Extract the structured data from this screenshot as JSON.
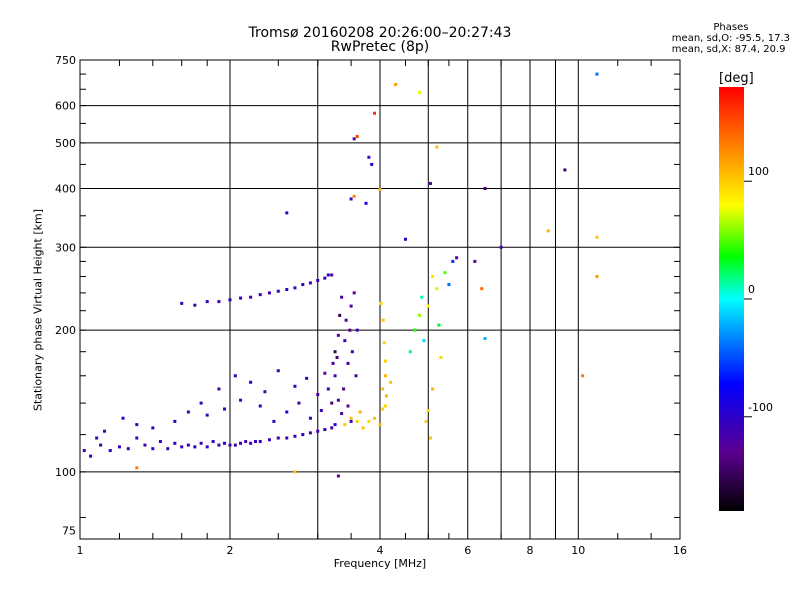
{
  "title_line1": "Tromsø 20160208 20:26:00–20:27:43",
  "title_line2": "RwPretec (8p)",
  "phases": {
    "heading": "Phases",
    "line_o": "mean, sd,O: -95.5, 17.3",
    "line_x": "mean, sd,X:  87.4, 20.9"
  },
  "chart_data": {
    "type": "scatter",
    "xlabel": "Frequency [MHz]",
    "ylabel": "Stationary phase Virtual Height [km]",
    "xscale": "log",
    "yscale": "log",
    "xlim": [
      1,
      16
    ],
    "ylim": [
      72,
      750
    ],
    "xticks": [
      1,
      2,
      4,
      6,
      8,
      10,
      16
    ],
    "xgrid": [
      1,
      2,
      3,
      4,
      5,
      6,
      7,
      8,
      9,
      10,
      16
    ],
    "yticks": [
      75,
      100,
      200,
      300,
      400,
      500,
      600,
      750
    ],
    "ygrid": [
      100,
      200,
      300,
      400,
      500,
      600,
      750
    ],
    "grid": true,
    "colorbar": {
      "label": "[deg]",
      "range": [
        -180,
        180
      ],
      "ticks": [
        -100,
        0,
        100
      ]
    },
    "series": [
      {
        "values": [
          [
            1.02,
            111,
            -115
          ],
          [
            1.05,
            108,
            -105
          ],
          [
            1.1,
            114,
            -110
          ],
          [
            1.15,
            111,
            -100
          ],
          [
            1.2,
            113,
            -108
          ],
          [
            1.25,
            112,
            -112
          ],
          [
            1.3,
            118,
            -104
          ],
          [
            1.35,
            114,
            -118
          ],
          [
            1.4,
            112,
            -100
          ],
          [
            1.45,
            116,
            -106
          ],
          [
            1.5,
            112,
            -110
          ],
          [
            1.55,
            115,
            -104
          ],
          [
            1.6,
            113,
            -112
          ],
          [
            1.65,
            114,
            -100
          ],
          [
            1.7,
            113,
            -96
          ],
          [
            1.75,
            115,
            -108
          ],
          [
            1.8,
            113,
            -115
          ],
          [
            1.85,
            116,
            -104
          ],
          [
            1.9,
            114,
            -110
          ],
          [
            1.95,
            115,
            -100
          ],
          [
            2.0,
            114,
            -106
          ],
          [
            2.05,
            114,
            -112
          ],
          [
            2.1,
            115,
            -104
          ],
          [
            2.15,
            116,
            -120
          ],
          [
            2.2,
            115,
            -102
          ],
          [
            2.25,
            116,
            -108
          ],
          [
            2.3,
            116,
            -100
          ],
          [
            2.4,
            117,
            -110
          ],
          [
            2.5,
            118,
            -104
          ],
          [
            2.6,
            118,
            -112
          ],
          [
            2.7,
            119,
            -106
          ],
          [
            2.8,
            120,
            -100
          ],
          [
            2.9,
            121,
            -108
          ],
          [
            3.0,
            122,
            -112
          ],
          [
            3.1,
            123,
            -104
          ],
          [
            3.2,
            124,
            -115
          ],
          [
            3.25,
            126,
            -106
          ]
        ]
      },
      {
        "values": [
          [
            1.08,
            118,
            -108
          ],
          [
            1.12,
            122,
            -110
          ],
          [
            1.22,
            130,
            -104
          ],
          [
            1.3,
            126,
            -112
          ],
          [
            1.4,
            124,
            -100
          ],
          [
            1.55,
            128,
            -106
          ],
          [
            1.65,
            134,
            -110
          ],
          [
            1.75,
            140,
            -104
          ],
          [
            1.8,
            132,
            -108
          ],
          [
            1.9,
            150,
            -112
          ],
          [
            1.95,
            136,
            -106
          ],
          [
            2.05,
            160,
            -104
          ],
          [
            2.1,
            142,
            -110
          ],
          [
            2.2,
            155,
            -100
          ],
          [
            2.3,
            138,
            -108
          ],
          [
            2.35,
            148,
            -116
          ],
          [
            2.45,
            128,
            -104
          ],
          [
            2.5,
            164,
            -110
          ],
          [
            2.6,
            134,
            -100
          ],
          [
            2.7,
            152,
            -106
          ],
          [
            2.75,
            140,
            -112
          ],
          [
            2.85,
            158,
            -104
          ],
          [
            2.9,
            130,
            -108
          ],
          [
            3.0,
            146,
            -120
          ],
          [
            3.05,
            135,
            -110
          ],
          [
            3.1,
            162,
            -130
          ],
          [
            3.15,
            150,
            -110
          ],
          [
            3.2,
            140,
            -140
          ],
          [
            3.22,
            170,
            -120
          ],
          [
            3.25,
            180,
            -150
          ]
        ]
      },
      {
        "values": [
          [
            1.6,
            228,
            -105
          ],
          [
            1.7,
            226,
            -110
          ],
          [
            1.8,
            230,
            -104
          ],
          [
            1.9,
            230,
            -112
          ],
          [
            2.0,
            232,
            -100
          ],
          [
            2.1,
            234,
            -108
          ],
          [
            2.2,
            235,
            -110
          ],
          [
            2.3,
            238,
            -104
          ],
          [
            2.4,
            240,
            -112
          ],
          [
            2.5,
            242,
            -106
          ],
          [
            2.6,
            244,
            -100
          ],
          [
            2.7,
            246,
            -110
          ],
          [
            2.8,
            250,
            -104
          ],
          [
            2.9,
            252,
            -108
          ],
          [
            3.0,
            255,
            -112
          ],
          [
            3.1,
            258,
            -104
          ],
          [
            3.15,
            262,
            -110
          ],
          [
            3.2,
            262,
            -115
          ]
        ]
      },
      {
        "values": [
          [
            3.25,
            160,
            -120
          ],
          [
            3.28,
            175,
            -140
          ],
          [
            3.3,
            195,
            -130
          ],
          [
            3.32,
            215,
            -150
          ],
          [
            3.35,
            235,
            -120
          ],
          [
            3.38,
            150,
            -135
          ],
          [
            3.4,
            190,
            -110
          ],
          [
            3.42,
            210,
            -125
          ],
          [
            3.45,
            170,
            -115
          ],
          [
            3.48,
            200,
            -140
          ],
          [
            3.5,
            225,
            -120
          ],
          [
            3.52,
            180,
            -110
          ],
          [
            3.55,
            240,
            -130
          ],
          [
            3.58,
            160,
            -120
          ],
          [
            3.6,
            200,
            -115
          ],
          [
            3.3,
            142,
            -125
          ],
          [
            3.35,
            133,
            -118
          ],
          [
            3.45,
            138,
            -130
          ],
          [
            3.5,
            128,
            -110
          ]
        ]
      },
      {
        "values": [
          [
            3.4,
            126,
            100
          ],
          [
            3.5,
            130,
            105
          ],
          [
            3.6,
            128,
            98
          ],
          [
            3.65,
            134,
            110
          ],
          [
            3.7,
            124,
            102
          ],
          [
            3.8,
            128,
            95
          ],
          [
            3.9,
            130,
            104
          ],
          [
            4.0,
            126,
            108
          ],
          [
            4.05,
            136,
            100
          ],
          [
            4.1,
            138,
            96
          ],
          [
            4.05,
            150,
            104
          ],
          [
            4.1,
            160,
            110
          ],
          [
            4.1,
            172,
            102
          ],
          [
            4.08,
            188,
            98
          ],
          [
            4.06,
            210,
            104
          ],
          [
            4.02,
            228,
            95
          ],
          [
            4.12,
            145,
            108
          ],
          [
            4.2,
            155,
            102
          ]
        ]
      },
      {
        "values": [
          [
            4.6,
            180,
            20
          ],
          [
            4.7,
            200,
            40
          ],
          [
            4.8,
            215,
            60
          ],
          [
            4.85,
            235,
            10
          ],
          [
            4.9,
            190,
            -10
          ],
          [
            5.0,
            225,
            80
          ],
          [
            5.1,
            260,
            90
          ],
          [
            5.2,
            245,
            70
          ],
          [
            5.3,
            175,
            95
          ],
          [
            5.25,
            205,
            30
          ],
          [
            5.4,
            265,
            50
          ],
          [
            5.5,
            250,
            -40
          ],
          [
            5.6,
            280,
            -60
          ],
          [
            5.1,
            150,
            110
          ],
          [
            4.95,
            128,
            100
          ],
          [
            5.05,
            118,
            104
          ],
          [
            5.0,
            135,
            95
          ]
        ]
      },
      {
        "values": [
          [
            3.3,
            98,
            -130
          ],
          [
            2.7,
            100,
            100
          ],
          [
            1.3,
            102,
            130
          ],
          [
            2.6,
            355,
            -100
          ],
          [
            3.5,
            380,
            -110
          ],
          [
            3.75,
            372,
            -90
          ],
          [
            4.5,
            312,
            -100
          ],
          [
            5.05,
            410,
            -120
          ],
          [
            6.5,
            400,
            -140
          ],
          [
            9.4,
            438,
            -145
          ],
          [
            7.0,
            300,
            -120
          ],
          [
            3.9,
            578,
            160
          ],
          [
            4.3,
            665,
            120
          ],
          [
            4.8,
            640,
            75
          ],
          [
            3.6,
            516,
            155
          ],
          [
            3.55,
            510,
            -120
          ],
          [
            3.8,
            466,
            -110
          ],
          [
            3.85,
            450,
            -100
          ],
          [
            3.55,
            385,
            130
          ],
          [
            4.0,
            398,
            110
          ],
          [
            5.2,
            490,
            105
          ],
          [
            8.7,
            325,
            110
          ],
          [
            10.9,
            315,
            100
          ],
          [
            10.9,
            260,
            120
          ],
          [
            10.9,
            700,
            -40
          ],
          [
            6.5,
            192,
            -20
          ],
          [
            10.2,
            160,
            130
          ],
          [
            5.7,
            285,
            -120
          ],
          [
            6.2,
            280,
            -130
          ],
          [
            6.4,
            245,
            140
          ]
        ]
      }
    ]
  }
}
